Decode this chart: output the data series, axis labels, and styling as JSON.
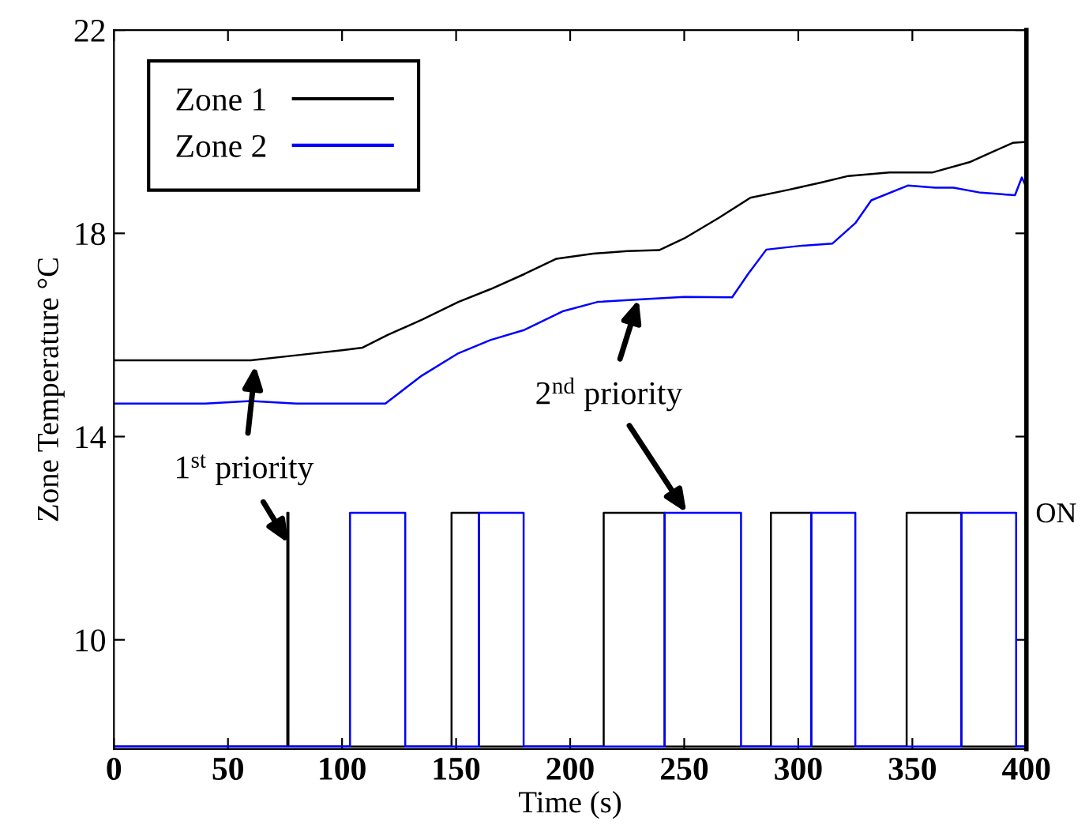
{
  "chart_data": {
    "type": "line",
    "xlabel": "Time (s)",
    "ylabel": "Zone Temperature °C",
    "xlim": [
      0,
      400
    ],
    "xticks": [
      0,
      50,
      100,
      150,
      200,
      250,
      300,
      350,
      400
    ],
    "ylim": [
      7.85,
      22
    ],
    "yticks": [
      10,
      14,
      18,
      22
    ],
    "legend": "top left",
    "grid": false,
    "series": [
      {
        "name": "Zone 1",
        "color": "#000000",
        "x": [
          0,
          20,
          40,
          60,
          80,
          100,
          109,
          120,
          135,
          151,
          165,
          180,
          194,
          210,
          225,
          239,
          250,
          265,
          279,
          295,
          310,
          322,
          340,
          359,
          375,
          385,
          394,
          400
        ],
        "values": [
          15.5,
          15.5,
          15.5,
          15.5,
          15.6,
          15.7,
          15.75,
          16.0,
          16.3,
          16.65,
          16.9,
          17.2,
          17.5,
          17.6,
          17.65,
          17.67,
          17.9,
          18.3,
          18.7,
          18.85,
          19.0,
          19.13,
          19.2,
          19.2,
          19.4,
          19.6,
          19.78,
          19.8
        ]
      },
      {
        "name": "Zone 2",
        "color": "#0000ff",
        "x": [
          0,
          20,
          40,
          60,
          80,
          100,
          119,
          135,
          151,
          165,
          180,
          197,
          212,
          230,
          250,
          271,
          278,
          286,
          300,
          315,
          325,
          332,
          348,
          360,
          368,
          380,
          395,
          398,
          400
        ],
        "values": [
          14.65,
          14.65,
          14.65,
          14.7,
          14.65,
          14.65,
          14.65,
          15.2,
          15.64,
          15.9,
          16.1,
          16.47,
          16.65,
          16.7,
          16.75,
          16.74,
          17.2,
          17.68,
          17.75,
          17.8,
          18.2,
          18.65,
          18.94,
          18.9,
          18.9,
          18.8,
          18.75,
          19.1,
          18.9
        ]
      },
      {
        "type": "step",
        "color": "#000000",
        "x": [
          0,
          76,
          76.5,
          148,
          160,
          214.7,
          241.4,
          288,
          305.7,
          347.5,
          371.5,
          400
        ],
        "values": [
          7.9,
          12.5,
          7.9,
          12.5,
          7.9,
          12.5,
          7.9,
          12.5,
          7.9,
          12.5,
          7.9,
          7.9
        ]
      },
      {
        "type": "step",
        "color": "#0000ff",
        "x": [
          0,
          103.5,
          127.7,
          160,
          179.6,
          241.4,
          274.9,
          305.7,
          325,
          371.5,
          395.5,
          400
        ],
        "values": [
          7.9,
          12.5,
          7.9,
          12.5,
          7.9,
          12.5,
          7.9,
          12.5,
          7.9,
          12.5,
          7.9,
          7.9
        ]
      }
    ],
    "annotations": [
      {
        "text": "1$^{st}$ priority",
        "x": 62,
        "y": 15.4
      },
      {
        "text": "2$^{nd}$ priority",
        "x": 230,
        "y": 16.7
      },
      "ON"
    ]
  }
}
